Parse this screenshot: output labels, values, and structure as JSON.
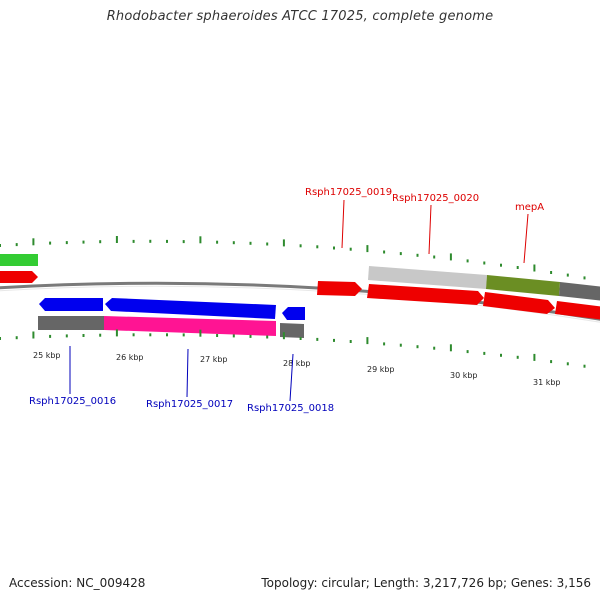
{
  "title": "Rhodobacter sphaeroides ATCC 17025, complete genome",
  "footer": {
    "accession": "Accession: NC_009428",
    "summary": "Topology: circular; Length: 3,217,726 bp; Genes: 3,156"
  },
  "colors": {
    "backbone": "#7a7a7a",
    "tick": "#2e8b2e",
    "label_forward": "#dd0000",
    "label_reverse": "#0000bb",
    "red_gene": "#ee0000",
    "blue_gene": "#0000ee",
    "pink_gene": "#ff1493",
    "gray_gene": "#666666",
    "light_gray_gene": "#c8c8c8",
    "olive_gene": "#6b8e23",
    "green_gene": "#33cc33"
  },
  "scale_labels": [
    "25 kbp",
    "26 kbp",
    "27 kbp",
    "28 kbp",
    "29 kbp",
    "30 kbp",
    "31 kbp"
  ],
  "gene_labels_forward": [
    "Rsph17025_0019",
    "Rsph17025_0020",
    "mepA"
  ],
  "gene_labels_reverse": [
    "Rsph17025_0016",
    "Rsph17025_0017",
    "Rsph17025_0018"
  ]
}
